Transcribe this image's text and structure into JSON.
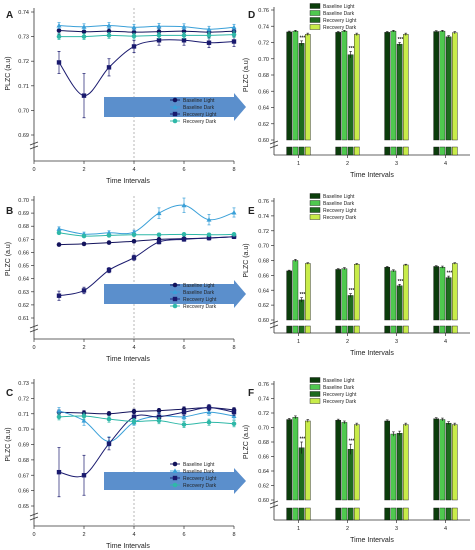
{
  "figure": {
    "x_title": "Time Intervals",
    "y_title": "PLZC (a.u)",
    "left_legend": [
      "Baseline Light",
      "Baseline Dark",
      "Recovery Light",
      "Recovery Dark"
    ],
    "right_legend": [
      "Baseline Light",
      "Baseline Dark",
      "Recovery Light",
      "Recovery Dark"
    ],
    "series_colors": {
      "baseline_light": "#13135c",
      "baseline_dark": "#3aa0d8",
      "recovery_light": "#1a1a6e",
      "recovery_dark": "#2fb8a8"
    },
    "bar_colors": {
      "baseline_light": "#0b3d0b",
      "baseline_dark": "#4fc94f",
      "recovery_light": "#1e6b1e",
      "recovery_dark": "#c8ec4a"
    },
    "arrow_color": "#5b8fcc",
    "significance_marker": "***"
  },
  "chart_data": [
    {
      "panel": "A",
      "type": "line",
      "x": [
        1,
        2,
        3,
        4,
        5,
        6,
        7,
        8
      ],
      "xticks": [
        0,
        2,
        4,
        6,
        8
      ],
      "yticks": [
        0.69,
        0.7,
        0.71,
        0.72,
        0.73,
        0.74
      ],
      "ylim": [
        0.69,
        0.74
      ],
      "series": [
        {
          "name": "Baseline Light",
          "values": [
            0.7325,
            0.732,
            0.7322,
            0.7318,
            0.732,
            0.7322,
            0.7318,
            0.7322
          ],
          "err": [
            0.0015,
            0.0015,
            0.0012,
            0.0012,
            0.0012,
            0.0012,
            0.0012,
            0.0012
          ]
        },
        {
          "name": "Baseline Dark",
          "values": [
            0.7345,
            0.734,
            0.7345,
            0.7338,
            0.7342,
            0.734,
            0.733,
            0.7338
          ],
          "err": [
            0.0012,
            0.0012,
            0.0012,
            0.0012,
            0.0012,
            0.0012,
            0.0012,
            0.0012
          ]
        },
        {
          "name": "Recovery Light",
          "values": [
            0.7195,
            0.706,
            0.7175,
            0.726,
            0.7285,
            0.7285,
            0.7275,
            0.728
          ],
          "err": [
            0.0045,
            0.009,
            0.0035,
            0.0025,
            0.002,
            0.002,
            0.002,
            0.002
          ]
        },
        {
          "name": "Recovery Dark",
          "values": [
            0.73,
            0.73,
            0.7305,
            0.7302,
            0.7305,
            0.7305,
            0.7305,
            0.7308
          ],
          "err": [
            0.0012,
            0.0012,
            0.0012,
            0.0012,
            0.0012,
            0.0012,
            0.0012,
            0.0012
          ]
        }
      ]
    },
    {
      "panel": "B",
      "type": "line",
      "x": [
        1,
        2,
        3,
        4,
        5,
        6,
        7,
        8
      ],
      "xticks": [
        0,
        2,
        4,
        6,
        8
      ],
      "yticks": [
        0.61,
        0.62,
        0.63,
        0.64,
        0.65,
        0.66,
        0.67,
        0.68,
        0.69,
        0.7
      ],
      "ylim": [
        0.61,
        0.7
      ],
      "series": [
        {
          "name": "Baseline Light",
          "values": [
            0.666,
            0.6665,
            0.6675,
            0.6685,
            0.67,
            0.6705,
            0.671,
            0.672
          ],
          "err": [
            0.0012,
            0.0012,
            0.0012,
            0.0012,
            0.0012,
            0.0012,
            0.0012,
            0.0012
          ]
        },
        {
          "name": "Baseline Dark",
          "values": [
            0.678,
            0.674,
            0.675,
            0.6755,
            0.69,
            0.696,
            0.685,
            0.6905
          ],
          "err": [
            0.0015,
            0.0015,
            0.0015,
            0.0015,
            0.004,
            0.0055,
            0.004,
            0.0035
          ]
        },
        {
          "name": "Recovery Light",
          "values": [
            0.627,
            0.631,
            0.6465,
            0.656,
            0.668,
            0.67,
            0.671,
            0.672
          ],
          "err": [
            0.0035,
            0.0025,
            0.002,
            0.002,
            0.0015,
            0.0015,
            0.0015,
            0.0015
          ]
        },
        {
          "name": "Recovery Dark",
          "values": [
            0.675,
            0.6725,
            0.673,
            0.6735,
            0.6735,
            0.6738,
            0.6735,
            0.6738
          ],
          "err": [
            0.0012,
            0.0012,
            0.0012,
            0.0012,
            0.0012,
            0.0012,
            0.0012,
            0.0012
          ]
        }
      ]
    },
    {
      "panel": "C",
      "type": "line",
      "x": [
        1,
        2,
        3,
        4,
        5,
        6,
        7,
        8
      ],
      "xticks": [
        0,
        2,
        4,
        6,
        8
      ],
      "yticks": [
        0.65,
        0.66,
        0.67,
        0.68,
        0.69,
        0.7,
        0.71,
        0.72,
        0.73
      ],
      "ylim": [
        0.65,
        0.73
      ],
      "series": [
        {
          "name": "Baseline Light",
          "values": [
            0.711,
            0.7105,
            0.71,
            0.7115,
            0.712,
            0.713,
            0.714,
            0.7125
          ],
          "err": [
            0.0015,
            0.0015,
            0.0015,
            0.0015,
            0.0015,
            0.0015,
            0.0015,
            0.0015
          ]
        },
        {
          "name": "Baseline Dark",
          "values": [
            0.712,
            0.7055,
            0.692,
            0.7045,
            0.7085,
            0.708,
            0.711,
            0.7085
          ],
          "err": [
            0.002,
            0.003,
            0.003,
            0.002,
            0.002,
            0.002,
            0.002,
            0.002
          ]
        },
        {
          "name": "Recovery Light",
          "values": [
            0.672,
            0.67,
            0.6905,
            0.708,
            0.708,
            0.711,
            0.714,
            0.711
          ],
          "err": [
            0.016,
            0.013,
            0.004,
            0.002,
            0.002,
            0.002,
            0.002,
            0.002
          ]
        },
        {
          "name": "Recovery Dark",
          "values": [
            0.708,
            0.7085,
            0.7065,
            0.705,
            0.7055,
            0.703,
            0.7045,
            0.7035
          ],
          "err": [
            0.002,
            0.002,
            0.002,
            0.002,
            0.002,
            0.002,
            0.002,
            0.002
          ]
        }
      ]
    },
    {
      "panel": "D",
      "type": "bar",
      "categories": [
        "1",
        "2",
        "3",
        "4"
      ],
      "yticks": [
        0.6,
        0.62,
        0.64,
        0.66,
        0.68,
        0.7,
        0.72,
        0.74,
        0.76
      ],
      "ylim": [
        0.6,
        0.76
      ],
      "series": [
        {
          "name": "Baseline Light",
          "values": [
            0.733,
            0.7325,
            0.7325,
            0.7335
          ],
          "err": [
            0.001,
            0.001,
            0.001,
            0.001
          ]
        },
        {
          "name": "Baseline Dark",
          "values": [
            0.734,
            0.734,
            0.734,
            0.734
          ],
          "err": [
            0.001,
            0.001,
            0.001,
            0.001
          ]
        },
        {
          "name": "Recovery Light",
          "values": [
            0.719,
            0.705,
            0.718,
            0.727
          ],
          "err": [
            0.003,
            0.004,
            0.002,
            0.0015
          ]
        },
        {
          "name": "Recovery Dark",
          "values": [
            0.73,
            0.73,
            0.73,
            0.732
          ],
          "err": [
            0.0015,
            0.0015,
            0.0015,
            0.0015
          ]
        }
      ],
      "significant": [
        0,
        1,
        2
      ]
    },
    {
      "panel": "E",
      "type": "bar",
      "categories": [
        "1",
        "2",
        "3",
        "4"
      ],
      "yticks": [
        0.6,
        0.62,
        0.64,
        0.66,
        0.68,
        0.7,
        0.72,
        0.74,
        0.76
      ],
      "ylim": [
        0.6,
        0.76
      ],
      "series": [
        {
          "name": "Baseline Light",
          "values": [
            0.666,
            0.668,
            0.671,
            0.672
          ],
          "err": [
            0.001,
            0.001,
            0.001,
            0.001
          ]
        },
        {
          "name": "Baseline Dark",
          "values": [
            0.68,
            0.669,
            0.666,
            0.671
          ],
          "err": [
            0.0015,
            0.0015,
            0.0015,
            0.0015
          ]
        },
        {
          "name": "Recovery Light",
          "values": [
            0.627,
            0.633,
            0.646,
            0.657
          ],
          "err": [
            0.003,
            0.0025,
            0.002,
            0.002
          ]
        },
        {
          "name": "Recovery Dark",
          "values": [
            0.676,
            0.675,
            0.674,
            0.676
          ],
          "err": [
            0.001,
            0.001,
            0.001,
            0.001
          ]
        }
      ],
      "significant": [
        0,
        1,
        2,
        3
      ]
    },
    {
      "panel": "F",
      "type": "bar",
      "categories": [
        "1",
        "2",
        "3",
        "4"
      ],
      "yticks": [
        0.6,
        0.62,
        0.64,
        0.66,
        0.68,
        0.7,
        0.72,
        0.74,
        0.76
      ],
      "ylim": [
        0.6,
        0.76
      ],
      "series": [
        {
          "name": "Baseline Light",
          "values": [
            0.711,
            0.71,
            0.709,
            0.712
          ],
          "err": [
            0.0015,
            0.0015,
            0.0015,
            0.0015
          ]
        },
        {
          "name": "Baseline Dark",
          "values": [
            0.714,
            0.707,
            0.691,
            0.711
          ],
          "err": [
            0.002,
            0.002,
            0.003,
            0.002
          ]
        },
        {
          "name": "Recovery Light",
          "values": [
            0.672,
            0.67,
            0.692,
            0.706
          ],
          "err": [
            0.008,
            0.007,
            0.003,
            0.002
          ]
        },
        {
          "name": "Recovery Dark",
          "values": [
            0.709,
            0.704,
            0.704,
            0.704
          ],
          "err": [
            0.002,
            0.002,
            0.002,
            0.002
          ]
        }
      ],
      "significant": [
        0,
        1
      ]
    }
  ]
}
